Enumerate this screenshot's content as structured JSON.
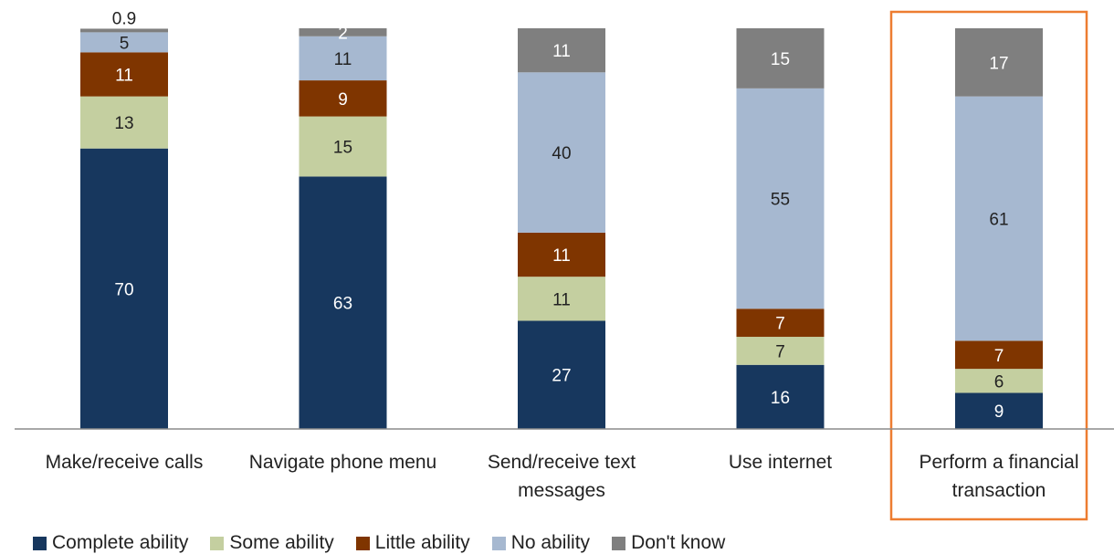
{
  "chart_data": {
    "type": "bar",
    "stacked": true,
    "categories": [
      "Make/receive calls",
      "Navigate phone menu",
      "Send/receive text messages",
      "Use internet",
      "Perform a financial transaction"
    ],
    "category_lines": [
      [
        "Make/receive calls"
      ],
      [
        "Navigate phone menu"
      ],
      [
        "Send/receive text",
        "messages"
      ],
      [
        "Use internet"
      ],
      [
        "Perform a financial",
        "transaction"
      ]
    ],
    "series": [
      {
        "name": "Complete ability",
        "color": "#17375e",
        "label_color": "#ffffff",
        "values": [
          70,
          63,
          27,
          16,
          9
        ]
      },
      {
        "name": "Some ability",
        "color": "#c4cfa0",
        "label_color": "#222222",
        "values": [
          13,
          15,
          11,
          7,
          6
        ]
      },
      {
        "name": "Little ability",
        "color": "#7f3500",
        "label_color": "#ffffff",
        "values": [
          11,
          9,
          11,
          7,
          7
        ]
      },
      {
        "name": "No ability",
        "color": "#a6b8d0",
        "label_color": "#222222",
        "values": [
          5,
          11,
          40,
          55,
          61
        ]
      },
      {
        "name": "Don't know",
        "color": "#7f7f7f",
        "label_color": "#ffffff",
        "values": [
          0.9,
          2,
          11,
          15,
          17
        ]
      }
    ],
    "ylim": [
      0,
      100
    ],
    "highlighted_category": "Perform a financial transaction",
    "highlight_color": "#ed7d31",
    "legend_position": "bottom-left",
    "grid": false
  }
}
